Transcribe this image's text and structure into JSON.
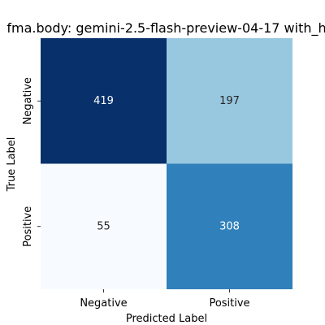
{
  "chart_data": {
    "type": "heatmap",
    "title": "fma.body: gemini-2.5-flash-preview-04-17 with_h",
    "xlabel": "Predicted Label",
    "ylabel": "True Label",
    "x_categories": [
      "Negative",
      "Positive"
    ],
    "y_categories": [
      "Negative",
      "Positive"
    ],
    "values": [
      [
        419,
        197
      ],
      [
        55,
        308
      ]
    ],
    "colormap": "Blues",
    "vmin": 55,
    "vmax": 419,
    "colorbar": false,
    "grid": false
  }
}
